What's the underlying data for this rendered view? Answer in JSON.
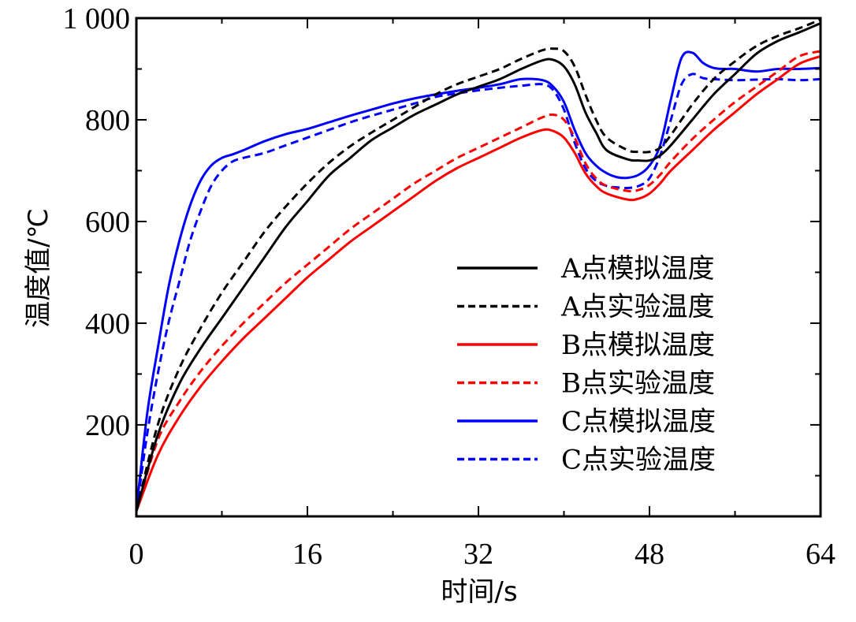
{
  "chart_data": {
    "type": "line",
    "xlabel": "时间/s",
    "ylabel": "温度值/℃",
    "xlim": [
      0,
      64
    ],
    "ylim": [
      20,
      1000
    ],
    "xticks": [
      0,
      16,
      32,
      48,
      64
    ],
    "xtick_labels": [
      "0",
      "16",
      "32",
      "48",
      "64"
    ],
    "yticks": [
      200,
      400,
      600,
      800,
      1000
    ],
    "ytick_labels": [
      "200",
      "400",
      "600",
      "800",
      "1 000"
    ],
    "grid": false,
    "legend_position": "bottom-right",
    "series": [
      {
        "name": "A点模拟温度",
        "color": "#000000",
        "dash": "solid",
        "x": [
          0,
          2,
          4,
          6,
          8,
          10,
          12,
          14,
          16,
          18,
          20,
          22,
          24,
          26,
          28,
          30,
          32,
          34,
          36,
          38,
          39,
          40,
          41,
          42,
          43,
          44,
          46,
          47,
          48,
          49,
          50,
          52,
          54,
          56,
          58,
          60,
          62,
          64
        ],
        "y": [
          30,
          180,
          280,
          350,
          410,
          470,
          530,
          590,
          640,
          690,
          725,
          760,
          785,
          810,
          830,
          850,
          865,
          880,
          900,
          917,
          918,
          905,
          870,
          815,
          775,
          740,
          722,
          720,
          720,
          730,
          750,
          800,
          850,
          890,
          930,
          955,
          972,
          990
        ]
      },
      {
        "name": "A点实验温度",
        "color": "#000000",
        "dash": "dashed",
        "x": [
          0,
          2,
          4,
          6,
          8,
          10,
          12,
          14,
          16,
          18,
          20,
          22,
          24,
          26,
          28,
          30,
          32,
          34,
          36,
          38,
          39,
          40,
          41,
          42,
          43,
          44,
          46,
          47,
          48,
          49,
          50,
          52,
          54,
          56,
          58,
          60,
          62,
          64
        ],
        "y": [
          30,
          200,
          310,
          390,
          460,
          520,
          580,
          630,
          675,
          715,
          748,
          775,
          800,
          825,
          850,
          870,
          885,
          900,
          920,
          937,
          940,
          935,
          905,
          850,
          800,
          765,
          740,
          737,
          737,
          745,
          770,
          830,
          880,
          915,
          945,
          965,
          980,
          997
        ]
      },
      {
        "name": "B点模拟温度",
        "color": "#ff0000",
        "dash": "solid",
        "x": [
          0,
          2,
          4,
          6,
          8,
          10,
          12,
          14,
          16,
          18,
          20,
          22,
          24,
          26,
          28,
          30,
          32,
          34,
          36,
          38,
          39,
          40,
          41,
          42,
          43,
          44,
          46,
          47,
          48,
          49,
          50,
          52,
          54,
          56,
          58,
          60,
          62,
          64
        ],
        "y": [
          30,
          140,
          215,
          275,
          325,
          370,
          410,
          450,
          490,
          525,
          560,
          590,
          620,
          650,
          680,
          705,
          725,
          745,
          765,
          780,
          778,
          765,
          735,
          695,
          670,
          655,
          643,
          645,
          655,
          675,
          700,
          740,
          780,
          815,
          850,
          880,
          910,
          925
        ]
      },
      {
        "name": "B点实验温度",
        "color": "#ff0000",
        "dash": "dashed",
        "x": [
          0,
          2,
          4,
          6,
          8,
          10,
          12,
          14,
          16,
          18,
          20,
          22,
          24,
          26,
          28,
          30,
          32,
          34,
          36,
          38,
          39,
          40,
          41,
          42,
          43,
          44,
          46,
          47,
          48,
          49,
          50,
          52,
          54,
          56,
          58,
          60,
          62,
          64
        ],
        "y": [
          30,
          170,
          245,
          305,
          355,
          400,
          440,
          480,
          515,
          550,
          585,
          615,
          645,
          675,
          700,
          725,
          745,
          765,
          785,
          805,
          810,
          800,
          765,
          715,
          685,
          670,
          660,
          662,
          672,
          692,
          718,
          762,
          800,
          835,
          865,
          895,
          925,
          935
        ]
      },
      {
        "name": "C点模拟温度",
        "color": "#0000ff",
        "dash": "solid",
        "x": [
          0,
          1,
          2,
          3,
          4,
          5,
          6,
          7,
          8,
          9,
          10,
          12,
          14,
          16,
          18,
          20,
          22,
          24,
          26,
          28,
          30,
          32,
          34,
          36,
          38,
          39,
          40,
          41,
          42,
          43,
          44,
          45,
          46,
          47,
          48,
          49,
          50,
          51,
          52,
          53,
          54,
          55,
          56,
          58,
          60,
          62,
          64
        ],
        "y": [
          30,
          220,
          350,
          470,
          560,
          630,
          680,
          710,
          725,
          732,
          740,
          758,
          772,
          782,
          795,
          808,
          820,
          832,
          842,
          850,
          857,
          863,
          870,
          880,
          878,
          865,
          835,
          780,
          735,
          710,
          695,
          687,
          686,
          692,
          710,
          750,
          840,
          922,
          932,
          912,
          902,
          900,
          900,
          895,
          900,
          900,
          902
        ]
      },
      {
        "name": "C点实验温度",
        "color": "#0000ff",
        "dash": "dashed",
        "x": [
          0,
          1,
          2,
          3,
          4,
          5,
          6,
          7,
          8,
          9,
          10,
          12,
          14,
          16,
          18,
          20,
          22,
          24,
          26,
          28,
          30,
          32,
          34,
          36,
          38,
          39,
          40,
          41,
          42,
          43,
          44,
          45,
          46,
          47,
          48,
          49,
          50,
          51,
          52,
          53,
          54,
          56,
          58,
          60,
          62,
          64
        ],
        "y": [
          30,
          180,
          300,
          400,
          480,
          560,
          620,
          670,
          700,
          718,
          725,
          735,
          750,
          765,
          780,
          795,
          808,
          820,
          832,
          845,
          852,
          858,
          863,
          867,
          870,
          858,
          820,
          755,
          705,
          680,
          670,
          667,
          666,
          670,
          685,
          730,
          800,
          870,
          890,
          882,
          880,
          878,
          879,
          880,
          878,
          880
        ]
      }
    ]
  }
}
